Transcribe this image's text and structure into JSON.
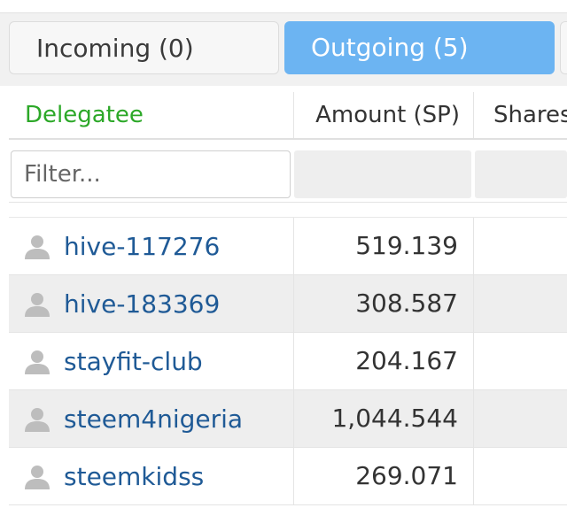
{
  "tabs": {
    "incoming_label": "Incoming (0)",
    "outgoing_label": "Outgoing (5)",
    "active": "outgoing"
  },
  "table": {
    "headers": {
      "delegatee": "Delegatee",
      "amount": "Amount (SP)",
      "shares": "Shares"
    },
    "filter": {
      "placeholder": "Filter..."
    },
    "rows": [
      {
        "delegatee": "hive-117276",
        "amount": "519.139"
      },
      {
        "delegatee": "hive-183369",
        "amount": "308.587"
      },
      {
        "delegatee": "stayfit-club",
        "amount": "204.167"
      },
      {
        "delegatee": "steem4nigeria",
        "amount": "1,044.544"
      },
      {
        "delegatee": "steemkidss",
        "amount": "269.071"
      }
    ]
  },
  "colors": {
    "active_tab": "#6cb4f2",
    "delegatee_header": "#2ca828",
    "link": "#1f5a96"
  },
  "icons": {
    "row_avatar": "user-icon"
  }
}
